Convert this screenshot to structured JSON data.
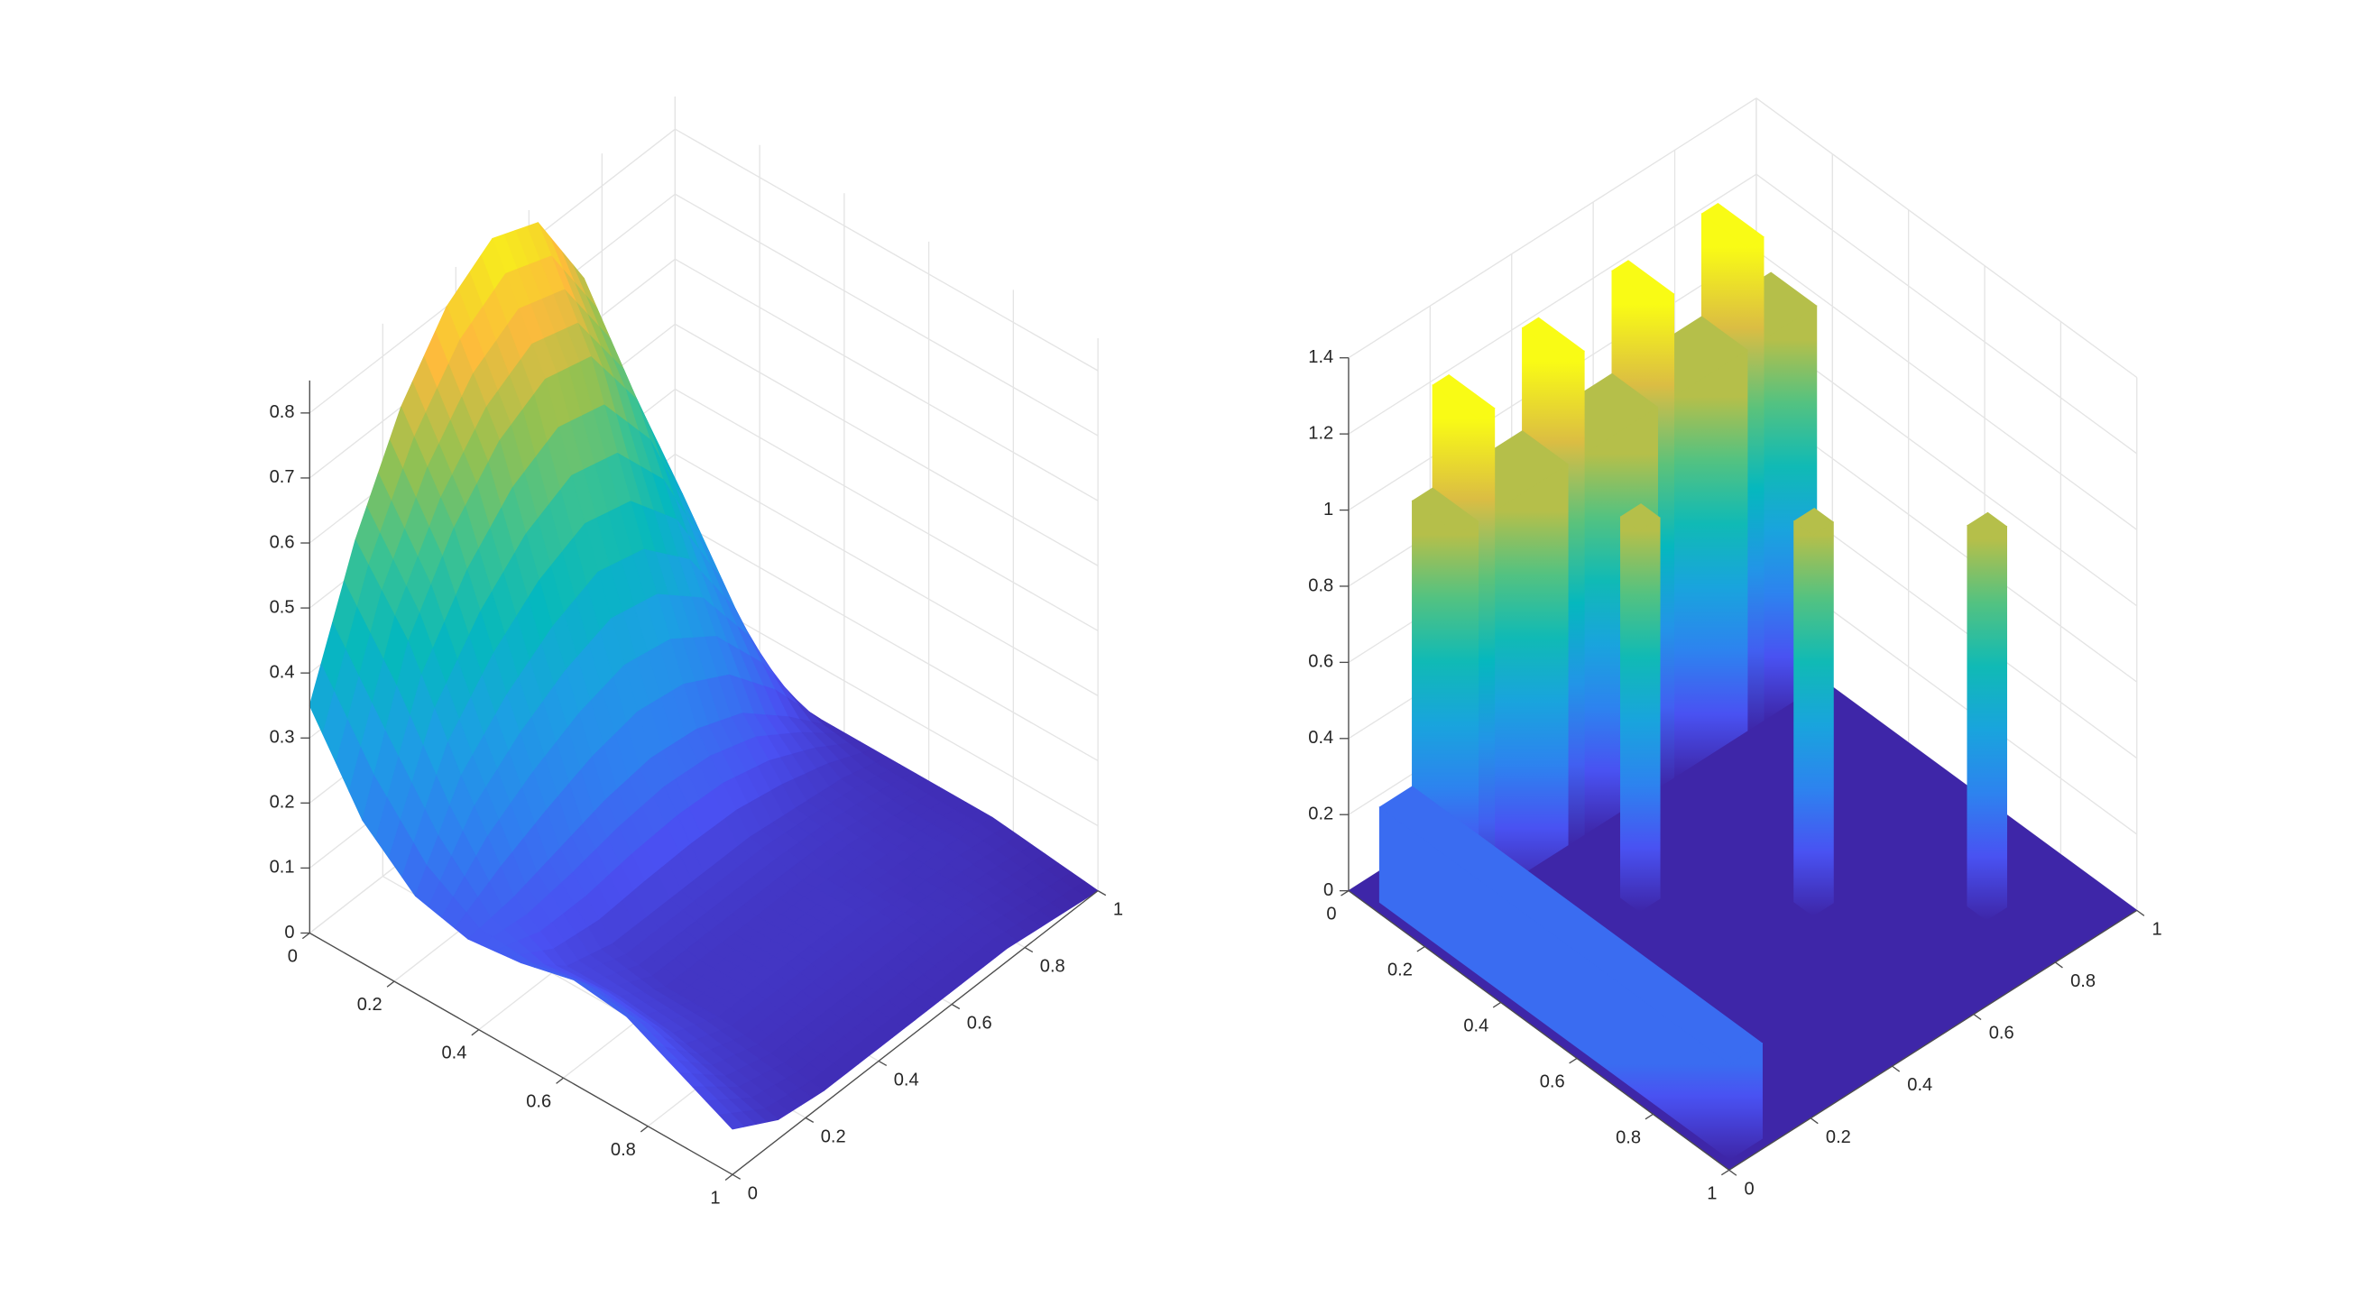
{
  "chart_data": [
    {
      "type": "surface",
      "colormap": "parula",
      "grid": true,
      "x": [
        0,
        0.125,
        0.25,
        0.375,
        0.5,
        0.625,
        0.75,
        0.875,
        1
      ],
      "y": [
        0,
        0.125,
        0.25,
        0.375,
        0.5,
        0.625,
        0.75,
        0.875,
        1
      ],
      "z": [
        [
          0.35,
          0.55,
          0.7,
          0.8,
          0.85,
          0.82,
          0.68,
          0.42,
          0.03
        ],
        [
          0.22,
          0.44,
          0.56,
          0.64,
          0.68,
          0.66,
          0.54,
          0.34,
          0.03
        ],
        [
          0.15,
          0.28,
          0.35,
          0.4,
          0.43,
          0.41,
          0.34,
          0.21,
          0.02
        ],
        [
          0.13,
          0.14,
          0.16,
          0.18,
          0.19,
          0.18,
          0.15,
          0.09,
          0.02
        ],
        [
          0.14,
          0.08,
          0.06,
          0.06,
          0.06,
          0.06,
          0.05,
          0.04,
          0.02
        ],
        [
          0.16,
          0.08,
          0.04,
          0.04,
          0.04,
          0.04,
          0.04,
          0.03,
          0.02
        ],
        [
          0.15,
          0.07,
          0.04,
          0.04,
          0.04,
          0.04,
          0.03,
          0.03,
          0.02
        ],
        [
          0.11,
          0.05,
          0.03,
          0.03,
          0.03,
          0.03,
          0.03,
          0.02,
          0.01
        ],
        [
          0.07,
          0.03,
          0.02,
          0.02,
          0.02,
          0.02,
          0.02,
          0.01,
          0.0
        ]
      ],
      "xlim": [
        0,
        1
      ],
      "ylim": [
        0,
        1
      ],
      "zlim": [
        0,
        0.85
      ],
      "xticks": [
        0,
        0.2,
        0.4,
        0.6,
        0.8,
        1
      ],
      "yticks": [
        0,
        0.2,
        0.4,
        0.6,
        0.8,
        1
      ],
      "zticks": [
        0,
        0.1,
        0.2,
        0.3,
        0.4,
        0.5,
        0.6,
        0.7,
        0.8
      ]
    },
    {
      "type": "blocks",
      "colormap": "parula",
      "grid": true,
      "blocks": [
        {
          "x": [
            0.06,
            0.18
          ],
          "y": [
            0.1,
            0.15
          ],
          "z": 1.0
        },
        {
          "x": [
            0.06,
            0.18
          ],
          "y": [
            0.15,
            0.19
          ],
          "z": 1.27
        },
        {
          "x": [
            0.06,
            0.18
          ],
          "y": [
            0.19,
            0.37
          ],
          "z": 1.0
        },
        {
          "x": [
            0.06,
            0.18
          ],
          "y": [
            0.37,
            0.41
          ],
          "z": 1.27
        },
        {
          "x": [
            0.06,
            0.18
          ],
          "y": [
            0.41,
            0.59
          ],
          "z": 1.0
        },
        {
          "x": [
            0.06,
            0.18
          ],
          "y": [
            0.59,
            0.63
          ],
          "z": 1.27
        },
        {
          "x": [
            0.06,
            0.18
          ],
          "y": [
            0.63,
            0.81
          ],
          "z": 1.0
        },
        {
          "x": [
            0.06,
            0.18
          ],
          "y": [
            0.81,
            0.85
          ],
          "z": 1.27
        },
        {
          "x": [
            0.06,
            0.18
          ],
          "y": [
            0.85,
            0.98
          ],
          "z": 1.0
        },
        {
          "x": [
            0.06,
            0.98
          ],
          "y": [
            0.02,
            0.1
          ],
          "z": 0.25
        },
        {
          "x": [
            0.345,
            0.395
          ],
          "y": [
            0.345,
            0.395
          ],
          "z": 1.0
        },
        {
          "x": [
            0.565,
            0.615
          ],
          "y": [
            0.565,
            0.615
          ],
          "z": 1.0
        },
        {
          "x": [
            0.785,
            0.835
          ],
          "y": [
            0.785,
            0.835
          ],
          "z": 1.0
        }
      ],
      "xlim": [
        0,
        1
      ],
      "ylim": [
        0,
        1
      ],
      "zlim": [
        0,
        1.4
      ],
      "xticks": [
        0,
        0.2,
        0.4,
        0.6,
        0.8,
        1
      ],
      "yticks": [
        0,
        0.2,
        0.4,
        0.6,
        0.8,
        1
      ],
      "zticks": [
        0,
        0.2,
        0.4,
        0.6,
        0.8,
        1,
        1.2,
        1.4
      ]
    }
  ]
}
